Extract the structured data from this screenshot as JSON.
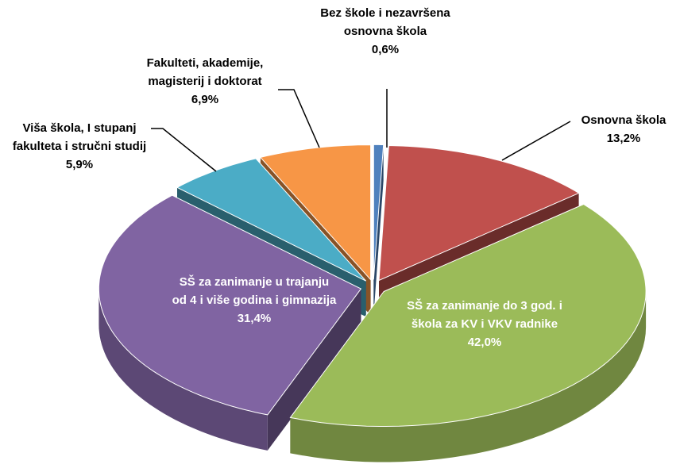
{
  "chart_data": {
    "type": "pie3d",
    "categories": [
      "Bez škole i nezavršena osnovna škola",
      "Osnovna škola",
      "SŠ za zanimanje do 3 god. i škola za KV i VKV radnike",
      "SŠ za zanimanje u trajanju od 4 i više godina i gimnazija",
      "Viša škola, I stupanj fakulteta i stručni studij",
      "Fakulteti, akademije, magisterij i doktorat"
    ],
    "values": [
      0.6,
      13.2,
      42.0,
      31.4,
      5.9,
      6.9
    ],
    "value_labels": [
      "0,6%",
      "13,2%",
      "42,0%",
      "31,4%",
      "5,9%",
      "6,9%"
    ],
    "colors": [
      "#4f81bd",
      "#c0504d",
      "#9bbb59",
      "#8064a2",
      "#4bacc6",
      "#f79646"
    ]
  }
}
